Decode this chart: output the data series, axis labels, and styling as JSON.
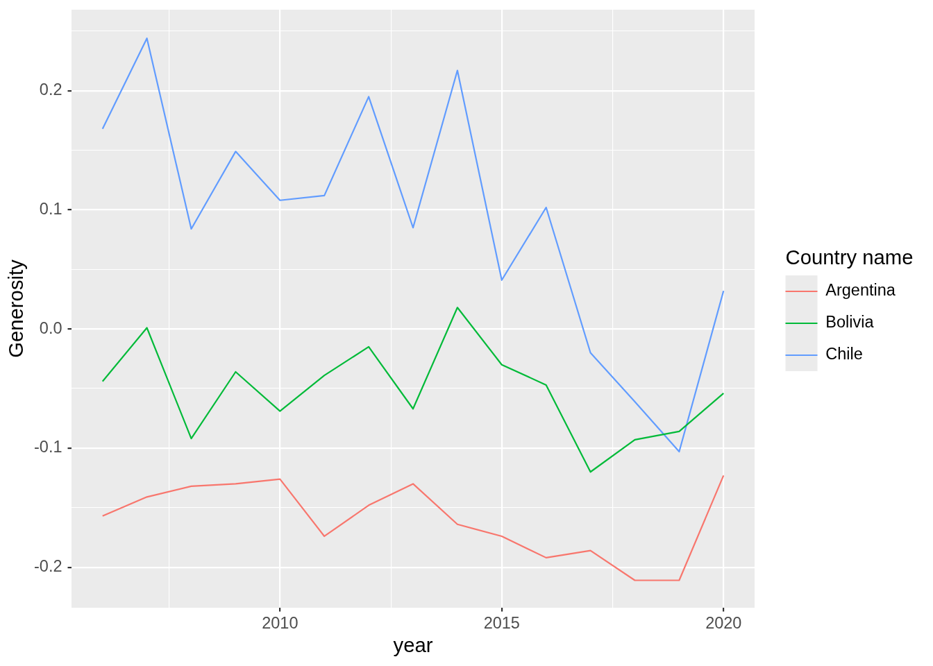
{
  "chart_data": {
    "type": "line",
    "xlabel": "year",
    "ylabel": "Generosity",
    "legend_title": "Country name",
    "legend": "right",
    "grid": true,
    "marker": "none",
    "line_style": "solid",
    "x": [
      2006,
      2007,
      2008,
      2009,
      2010,
      2011,
      2012,
      2013,
      2014,
      2015,
      2016,
      2017,
      2018,
      2019,
      2020
    ],
    "xlim": [
      2005.3,
      2020.7
    ],
    "xticks": [
      {
        "value": 2007.5,
        "label": null
      },
      2010,
      {
        "value": 2012.5,
        "label": null
      },
      2015,
      {
        "value": 2017.5,
        "label": null
      },
      2020
    ],
    "ylim": [
      -0.234,
      0.268
    ],
    "yticks": [
      -0.2,
      {
        "value": -0.15,
        "label": null
      },
      -0.1,
      {
        "value": -0.05,
        "label": null
      },
      {
        "value": 0,
        "label": "0.0"
      },
      {
        "value": 0.05,
        "label": null
      },
      0.1,
      {
        "value": 0.15,
        "label": null
      },
      0.2,
      {
        "value": 0.25,
        "label": null
      }
    ],
    "series": [
      {
        "name": "Argentina",
        "color": "#f8766d",
        "values": [
          -0.157,
          -0.141,
          -0.132,
          -0.13,
          -0.126,
          -0.174,
          -0.148,
          -0.13,
          -0.164,
          -0.174,
          -0.192,
          -0.186,
          -0.211,
          -0.211,
          -0.123
        ]
      },
      {
        "name": "Bolivia",
        "color": "#00ba38",
        "values": [
          -0.044,
          0.001,
          -0.092,
          -0.036,
          -0.069,
          -0.039,
          -0.015,
          -0.067,
          0.018,
          -0.03,
          -0.047,
          -0.12,
          -0.093,
          -0.086,
          -0.054
        ]
      },
      {
        "name": "Chile",
        "color": "#619cff",
        "values": [
          0.168,
          0.244,
          0.084,
          0.149,
          0.108,
          0.112,
          0.195,
          0.085,
          0.217,
          0.041,
          0.102,
          -0.02,
          -0.061,
          -0.103,
          0.032
        ]
      }
    ]
  }
}
